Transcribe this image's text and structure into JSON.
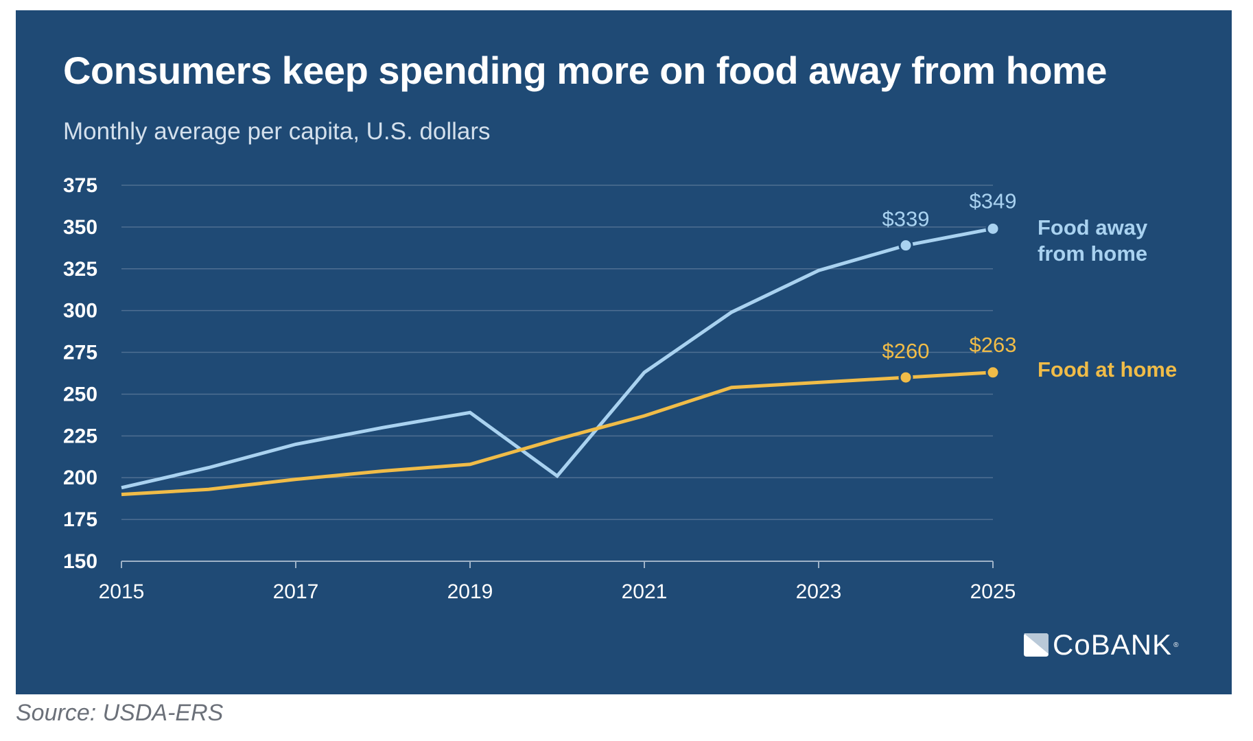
{
  "header": {
    "title": "Consumers keep spending more on food away from home",
    "subtitle": "Monthly average per capita, U.S. dollars"
  },
  "footer": {
    "source": "Source: USDA-ERS",
    "logo_text": "CoBANK",
    "logo_mark": "®"
  },
  "colors": {
    "background": "#1f4a75",
    "food_away": "#a9d2f0",
    "food_at_home": "#f0bc48",
    "grid": "#4f6f92",
    "axis": "#9fb3c8",
    "tick_text": "#ffffff"
  },
  "chart_data": {
    "type": "line",
    "title": "Consumers keep spending more on food away from home",
    "subtitle": "Monthly average per capita, U.S. dollars",
    "xlabel": "",
    "ylabel": "",
    "x": [
      2015,
      2016,
      2017,
      2018,
      2019,
      2020,
      2021,
      2022,
      2023,
      2024,
      2025
    ],
    "x_ticks": [
      "2015",
      "2017",
      "2019",
      "2021",
      "2023",
      "2025"
    ],
    "x_tick_values": [
      2015,
      2017,
      2019,
      2021,
      2023,
      2025
    ],
    "y_ticks": [
      "150",
      "175",
      "200",
      "225",
      "250",
      "275",
      "300",
      "325",
      "350",
      "375"
    ],
    "y_tick_values": [
      150,
      175,
      200,
      225,
      250,
      275,
      300,
      325,
      350,
      375
    ],
    "ylim": [
      150,
      375
    ],
    "xlim": [
      2015,
      2025
    ],
    "grid": true,
    "legend_position": "right (direct labels)",
    "series": [
      {
        "name": "Food away from home",
        "label_lines": [
          "Food away",
          "from home"
        ],
        "color": "#a9d2f0",
        "values": [
          194,
          206,
          220,
          230,
          239,
          201,
          263,
          299,
          324,
          339,
          349
        ],
        "annotations": [
          {
            "x": 2024,
            "y": 339,
            "text": "$339"
          },
          {
            "x": 2025,
            "y": 349,
            "text": "$349"
          }
        ]
      },
      {
        "name": "Food at home",
        "label_lines": [
          "Food at home"
        ],
        "color": "#f0bc48",
        "values": [
          190,
          193,
          199,
          204,
          208,
          223,
          237,
          254,
          257,
          260,
          263
        ],
        "annotations": [
          {
            "x": 2024,
            "y": 260,
            "text": "$260"
          },
          {
            "x": 2025,
            "y": 263,
            "text": "$263"
          }
        ]
      }
    ]
  }
}
